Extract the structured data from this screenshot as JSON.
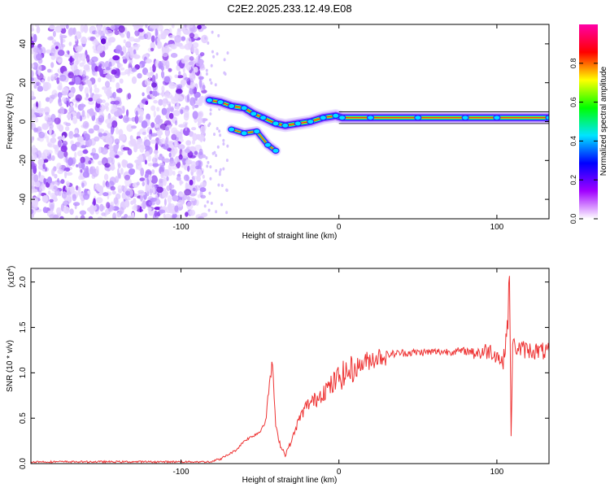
{
  "title": "C2E2.2025.233.12.49.E08",
  "chart_data": [
    {
      "type": "heatmap",
      "title": "",
      "xlabel": "Height of straight line (km)",
      "ylabel": "Frequency (Hz)",
      "xlim": [
        -195,
        133
      ],
      "ylim": [
        -50,
        50
      ],
      "xticks": [
        "-100",
        "0",
        "100"
      ],
      "yticks": [
        "-40",
        "-20",
        "0",
        "20",
        "40"
      ],
      "xtick_values": [
        -100,
        0,
        100
      ],
      "ytick_values": [
        -40,
        -20,
        0,
        20,
        40
      ],
      "noise_region_x": [
        -195,
        -85
      ],
      "ridge": [
        {
          "x": -82,
          "y": 11
        },
        {
          "x": -75,
          "y": 10
        },
        {
          "x": -68,
          "y": 8
        },
        {
          "x": -60,
          "y": 7
        },
        {
          "x": -54,
          "y": 4
        },
        {
          "x": -48,
          "y": 2
        },
        {
          "x": -40,
          "y": -1
        },
        {
          "x": -34,
          "y": -2
        },
        {
          "x": -26,
          "y": -1
        },
        {
          "x": -18,
          "y": 0
        },
        {
          "x": -10,
          "y": 2
        },
        {
          "x": -2,
          "y": 3
        },
        {
          "x": 2,
          "y": 2
        },
        {
          "x": 20,
          "y": 2
        },
        {
          "x": 50,
          "y": 2
        },
        {
          "x": 80,
          "y": 2
        },
        {
          "x": 100,
          "y": 2
        },
        {
          "x": 133,
          "y": 2
        }
      ],
      "secondary_branch": [
        {
          "x": -68,
          "y": -4
        },
        {
          "x": -60,
          "y": -6
        },
        {
          "x": -52,
          "y": -5
        },
        {
          "x": -45,
          "y": -12
        },
        {
          "x": -40,
          "y": -15
        }
      ],
      "colorbar": {
        "label": "Normalized spectral amplitude",
        "ticks": [
          "0.0",
          "0.2",
          "0.4",
          "0.6",
          "0.8"
        ],
        "tick_values": [
          0,
          0.2,
          0.4,
          0.6,
          0.8
        ],
        "range": [
          0,
          1
        ],
        "colors": [
          "#ffffff",
          "#a100ff",
          "#0000ff",
          "#00e5ff",
          "#00ff00",
          "#ffff00",
          "#ff0000",
          "#ff00a8"
        ]
      }
    },
    {
      "type": "line",
      "title": "",
      "xlabel": "Height of straight line (km)",
      "ylabel": "SNR (10 * v/v)",
      "scale_label": "(x10",
      "scale_exp": "4",
      "scale_close": ")",
      "xlim": [
        -195,
        133
      ],
      "ylim": [
        0,
        2.15
      ],
      "xticks": [
        "-100",
        "0",
        "100"
      ],
      "yticks": [
        "0.0",
        "0.5",
        "1.0",
        "1.5",
        "2.0"
      ],
      "xtick_values": [
        -100,
        0,
        100
      ],
      "ytick_values": [
        0,
        0.5,
        1.0,
        1.5,
        2.0
      ],
      "series_color": "#ee3333",
      "series": [
        {
          "name": "SNR",
          "points": [
            {
              "x": -195,
              "y": 0.02
            },
            {
              "x": -150,
              "y": 0.02
            },
            {
              "x": -100,
              "y": 0.02
            },
            {
              "x": -80,
              "y": 0.03
            },
            {
              "x": -75,
              "y": 0.05
            },
            {
              "x": -70,
              "y": 0.1
            },
            {
              "x": -65,
              "y": 0.15
            },
            {
              "x": -60,
              "y": 0.25
            },
            {
              "x": -55,
              "y": 0.3
            },
            {
              "x": -50,
              "y": 0.35
            },
            {
              "x": -46,
              "y": 0.5
            },
            {
              "x": -44,
              "y": 0.9
            },
            {
              "x": -42,
              "y": 1.1
            },
            {
              "x": -40,
              "y": 0.4
            },
            {
              "x": -37,
              "y": 0.2
            },
            {
              "x": -34,
              "y": 0.1
            },
            {
              "x": -30,
              "y": 0.25
            },
            {
              "x": -25,
              "y": 0.5
            },
            {
              "x": -20,
              "y": 0.65
            },
            {
              "x": -15,
              "y": 0.7
            },
            {
              "x": -10,
              "y": 0.8
            },
            {
              "x": -5,
              "y": 0.85
            },
            {
              "x": 0,
              "y": 0.95
            },
            {
              "x": 10,
              "y": 1.05
            },
            {
              "x": 20,
              "y": 1.15
            },
            {
              "x": 30,
              "y": 1.2
            },
            {
              "x": 40,
              "y": 1.22
            },
            {
              "x": 60,
              "y": 1.23
            },
            {
              "x": 80,
              "y": 1.24
            },
            {
              "x": 90,
              "y": 1.22
            },
            {
              "x": 95,
              "y": 1.25
            },
            {
              "x": 100,
              "y": 1.2
            },
            {
              "x": 104,
              "y": 1.1
            },
            {
              "x": 107,
              "y": 1.6
            },
            {
              "x": 108,
              "y": 2.1
            },
            {
              "x": 109,
              "y": 0.3
            },
            {
              "x": 110,
              "y": 1.3
            },
            {
              "x": 115,
              "y": 1.26
            },
            {
              "x": 120,
              "y": 1.25
            },
            {
              "x": 133,
              "y": 1.23
            }
          ]
        }
      ]
    }
  ]
}
